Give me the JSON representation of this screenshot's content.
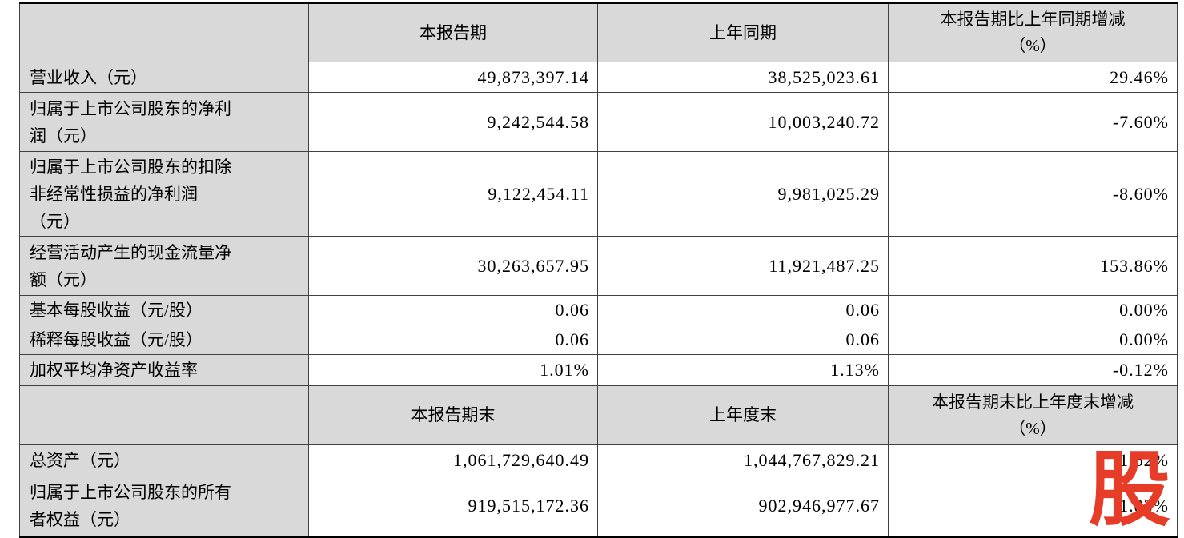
{
  "colors": {
    "header_fill": "#d9d9d9",
    "border": "#404040",
    "watermark_red": "#e63c28",
    "text": "#000000"
  },
  "table": {
    "header1": {
      "corner": "",
      "col1": "本报告期",
      "col2": "上年同期",
      "col3": "本报告期比上年同期增减\n（%）"
    },
    "rows": [
      {
        "label": "营业收入（元）",
        "current": "49,873,397.14",
        "prior": "38,525,023.61",
        "change": "29.46%"
      },
      {
        "label": "归属于上市公司股东的净利\n润（元）",
        "current": "9,242,544.58",
        "prior": "10,003,240.72",
        "change": "-7.60%"
      },
      {
        "label": "归属于上市公司股东的扣除\n非经常性损益的净利润\n（元）",
        "current": "9,122,454.11",
        "prior": "9,981,025.29",
        "change": "-8.60%"
      },
      {
        "label": "经营活动产生的现金流量净\n额（元）",
        "current": "30,263,657.95",
        "prior": "11,921,487.25",
        "change": "153.86%"
      },
      {
        "label": "基本每股收益（元/股）",
        "current": "0.06",
        "prior": "0.06",
        "change": "0.00%"
      },
      {
        "label": "稀释每股收益（元/股）",
        "current": "0.06",
        "prior": "0.06",
        "change": "0.00%"
      },
      {
        "label": "加权平均净资产收益率",
        "current": "1.01%",
        "prior": "1.13%",
        "change": "-0.12%"
      }
    ],
    "header2": {
      "corner": "",
      "col1": "本报告期末",
      "col2": "上年度末",
      "col3": "本报告期末比上年度末增减\n（%）"
    },
    "rows2": [
      {
        "label": "总资产（元）",
        "current": "1,061,729,640.49",
        "prior": "1,044,767,829.21",
        "change": "1.62%"
      },
      {
        "label": "归属于上市公司股东的所有\n者权益（元）",
        "current": "919,515,172.36",
        "prior": "902,946,977.67",
        "change": "1.83%"
      }
    ]
  },
  "watermark": {
    "text": "股"
  }
}
